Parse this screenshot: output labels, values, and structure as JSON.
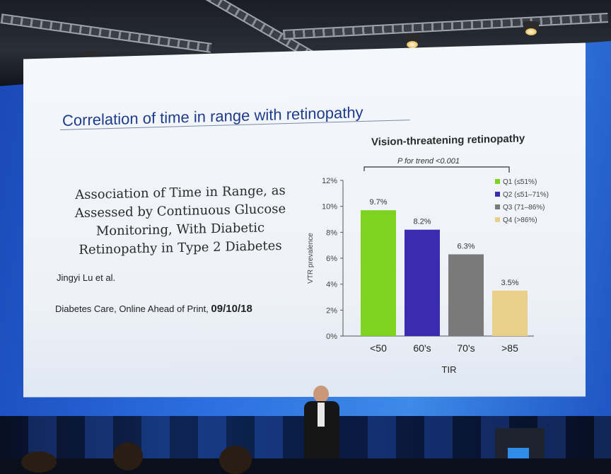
{
  "slide": {
    "title": "Correlation of time in range with retinopathy",
    "paper_title": "Association of Time in Range, as Assessed by Continuous Glucose Monitoring, With Diabetic Retinopathy in Type 2 Diabetes",
    "author": "Jingyi Lu et al.",
    "journal_prefix": "Diabetes Care, Online Ahead of Print,",
    "journal_date": "09/10/18"
  },
  "chart_data": {
    "type": "bar",
    "title": "Vision-threatening retinopathy",
    "annotation": "P for trend <0.001",
    "xlabel": "TIR",
    "ylabel": "VTR prevalence",
    "ylim": [
      0,
      12
    ],
    "yticks": [
      "0%",
      "2%",
      "4%",
      "6%",
      "8%",
      "10%",
      "12%"
    ],
    "categories": [
      "<50",
      "60's",
      "70's",
      ">85"
    ],
    "values": [
      9.7,
      8.2,
      6.3,
      3.5
    ],
    "labels": [
      "9.7%",
      "8.2%",
      "6.3%",
      "3.5%"
    ],
    "colors": [
      "#7ed321",
      "#3a2bb0",
      "#7a7a7a",
      "#e8d08a"
    ],
    "legend": [
      "Q1 (≤51%)",
      "Q2 (≤51–71%)",
      "Q3 (71–86%)",
      "Q4 (>86%)"
    ],
    "legend_position": "top-right",
    "grid": false
  }
}
